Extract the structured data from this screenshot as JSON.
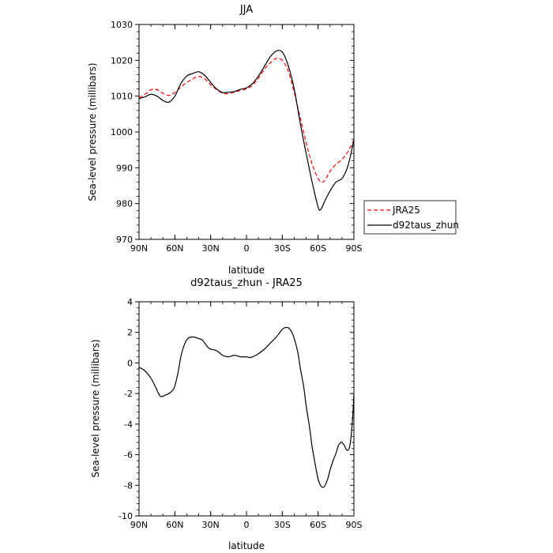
{
  "chart_data": [
    {
      "type": "line",
      "title": "JJA",
      "xlabel": "latitude",
      "ylabel": "Sea-level pressure (millibars)",
      "xlim": [
        90,
        -90
      ],
      "ylim": [
        970,
        1030
      ],
      "x_ticks": [
        90,
        60,
        30,
        0,
        -30,
        -60,
        -90
      ],
      "x_tick_labels": [
        "90N",
        "60N",
        "30N",
        "0",
        "30S",
        "60S",
        "90S"
      ],
      "y_ticks": [
        970,
        980,
        990,
        1000,
        1010,
        1020,
        1030
      ],
      "y_tick_labels": [
        "970",
        "980",
        "990",
        "1000",
        "1010",
        "1020",
        "1030"
      ],
      "legend_position": "outside-right",
      "series": [
        {
          "name": "JRA25",
          "color": "#ff0000",
          "dash": "dashed",
          "x": [
            90,
            85,
            80,
            75,
            70,
            65,
            60,
            55,
            50,
            45,
            40,
            35,
            30,
            25,
            20,
            15,
            10,
            5,
            0,
            -5,
            -10,
            -15,
            -20,
            -25,
            -30,
            -35,
            -40,
            -45,
            -50,
            -55,
            -60,
            -63,
            -65,
            -67,
            -70,
            -75,
            -80,
            -85,
            -90
          ],
          "y": [
            1009.5,
            1010.5,
            1011.8,
            1011.8,
            1010.8,
            1010.2,
            1011.0,
            1012.5,
            1013.8,
            1014.8,
            1015.5,
            1014.8,
            1013.2,
            1011.8,
            1010.8,
            1010.7,
            1011.1,
            1011.6,
            1012.0,
            1013.0,
            1015.0,
            1017.5,
            1019.3,
            1020.5,
            1020.0,
            1017.0,
            1011.0,
            1004.0,
            997.0,
            991.0,
            987.0,
            986.0,
            986.2,
            987.2,
            989.0,
            991.0,
            992.3,
            994.5,
            997.8
          ]
        },
        {
          "name": "d92taus_zhun",
          "color": "#000000",
          "dash": "solid",
          "x": [
            90,
            85,
            80,
            75,
            70,
            65,
            60,
            55,
            50,
            45,
            40,
            35,
            30,
            25,
            20,
            15,
            10,
            5,
            0,
            -5,
            -10,
            -15,
            -20,
            -25,
            -30,
            -35,
            -40,
            -45,
            -50,
            -55,
            -60,
            -62,
            -64,
            -66,
            -70,
            -75,
            -80,
            -85,
            -90
          ],
          "y": [
            1009.3,
            1009.8,
            1010.5,
            1010.0,
            1008.8,
            1008.3,
            1010.0,
            1013.5,
            1015.6,
            1016.3,
            1016.8,
            1015.8,
            1013.8,
            1012.0,
            1011.0,
            1011.1,
            1011.3,
            1011.9,
            1012.3,
            1013.5,
            1015.6,
            1018.3,
            1021.0,
            1022.6,
            1022.3,
            1018.5,
            1012.0,
            1002.5,
            994.0,
            986.0,
            979.0,
            978.3,
            979.5,
            981.0,
            983.5,
            986.0,
            987.0,
            990.5,
            997.8
          ]
        }
      ]
    },
    {
      "type": "line",
      "title": "d92taus_zhun - JRA25",
      "xlabel": "latitude",
      "ylabel": "Sea-level pressure (millibars)",
      "xlim": [
        90,
        -90
      ],
      "ylim": [
        -10,
        4
      ],
      "x_ticks": [
        90,
        60,
        30,
        0,
        -30,
        -60,
        -90
      ],
      "x_tick_labels": [
        "90N",
        "60N",
        "30N",
        "0",
        "30S",
        "60S",
        "90S"
      ],
      "y_ticks": [
        -10,
        -8,
        -6,
        -4,
        -2,
        0,
        2,
        4
      ],
      "y_tick_labels": [
        "-10",
        "-8",
        "-6",
        "-4",
        "-2",
        "0",
        "2",
        "4"
      ],
      "series": [
        {
          "name": "",
          "color": "#000000",
          "dash": "solid",
          "x": [
            90,
            87,
            84,
            80,
            76,
            73,
            71,
            68,
            65,
            62,
            60,
            57,
            55,
            52,
            49,
            45,
            40,
            37,
            35,
            32,
            30,
            25,
            20,
            15,
            10,
            5,
            0,
            -3,
            -5,
            -8,
            -10,
            -15,
            -20,
            -25,
            -28,
            -30,
            -32,
            -35,
            -38,
            -40,
            -43,
            -45,
            -48,
            -50,
            -53,
            -55,
            -58,
            -60,
            -62,
            -63,
            -65,
            -68,
            -70,
            -73,
            -75,
            -77,
            -79,
            -80,
            -82,
            -84,
            -86,
            -87,
            -88,
            -89,
            -90
          ],
          "y": [
            -0.3,
            -0.4,
            -0.6,
            -1.0,
            -1.6,
            -2.1,
            -2.2,
            -2.1,
            -2.0,
            -1.8,
            -1.5,
            -0.5,
            0.4,
            1.2,
            1.6,
            1.7,
            1.6,
            1.5,
            1.3,
            1.0,
            0.9,
            0.8,
            0.5,
            0.4,
            0.5,
            0.4,
            0.4,
            0.35,
            0.4,
            0.5,
            0.6,
            0.9,
            1.3,
            1.7,
            2.0,
            2.2,
            2.3,
            2.3,
            2.0,
            1.6,
            0.7,
            -0.3,
            -1.6,
            -2.8,
            -4.3,
            -5.5,
            -6.8,
            -7.6,
            -8.0,
            -8.1,
            -8.1,
            -7.6,
            -7.0,
            -6.3,
            -5.9,
            -5.4,
            -5.2,
            -5.2,
            -5.4,
            -5.7,
            -5.6,
            -5.2,
            -4.5,
            -3.5,
            -2.0
          ]
        }
      ]
    }
  ]
}
